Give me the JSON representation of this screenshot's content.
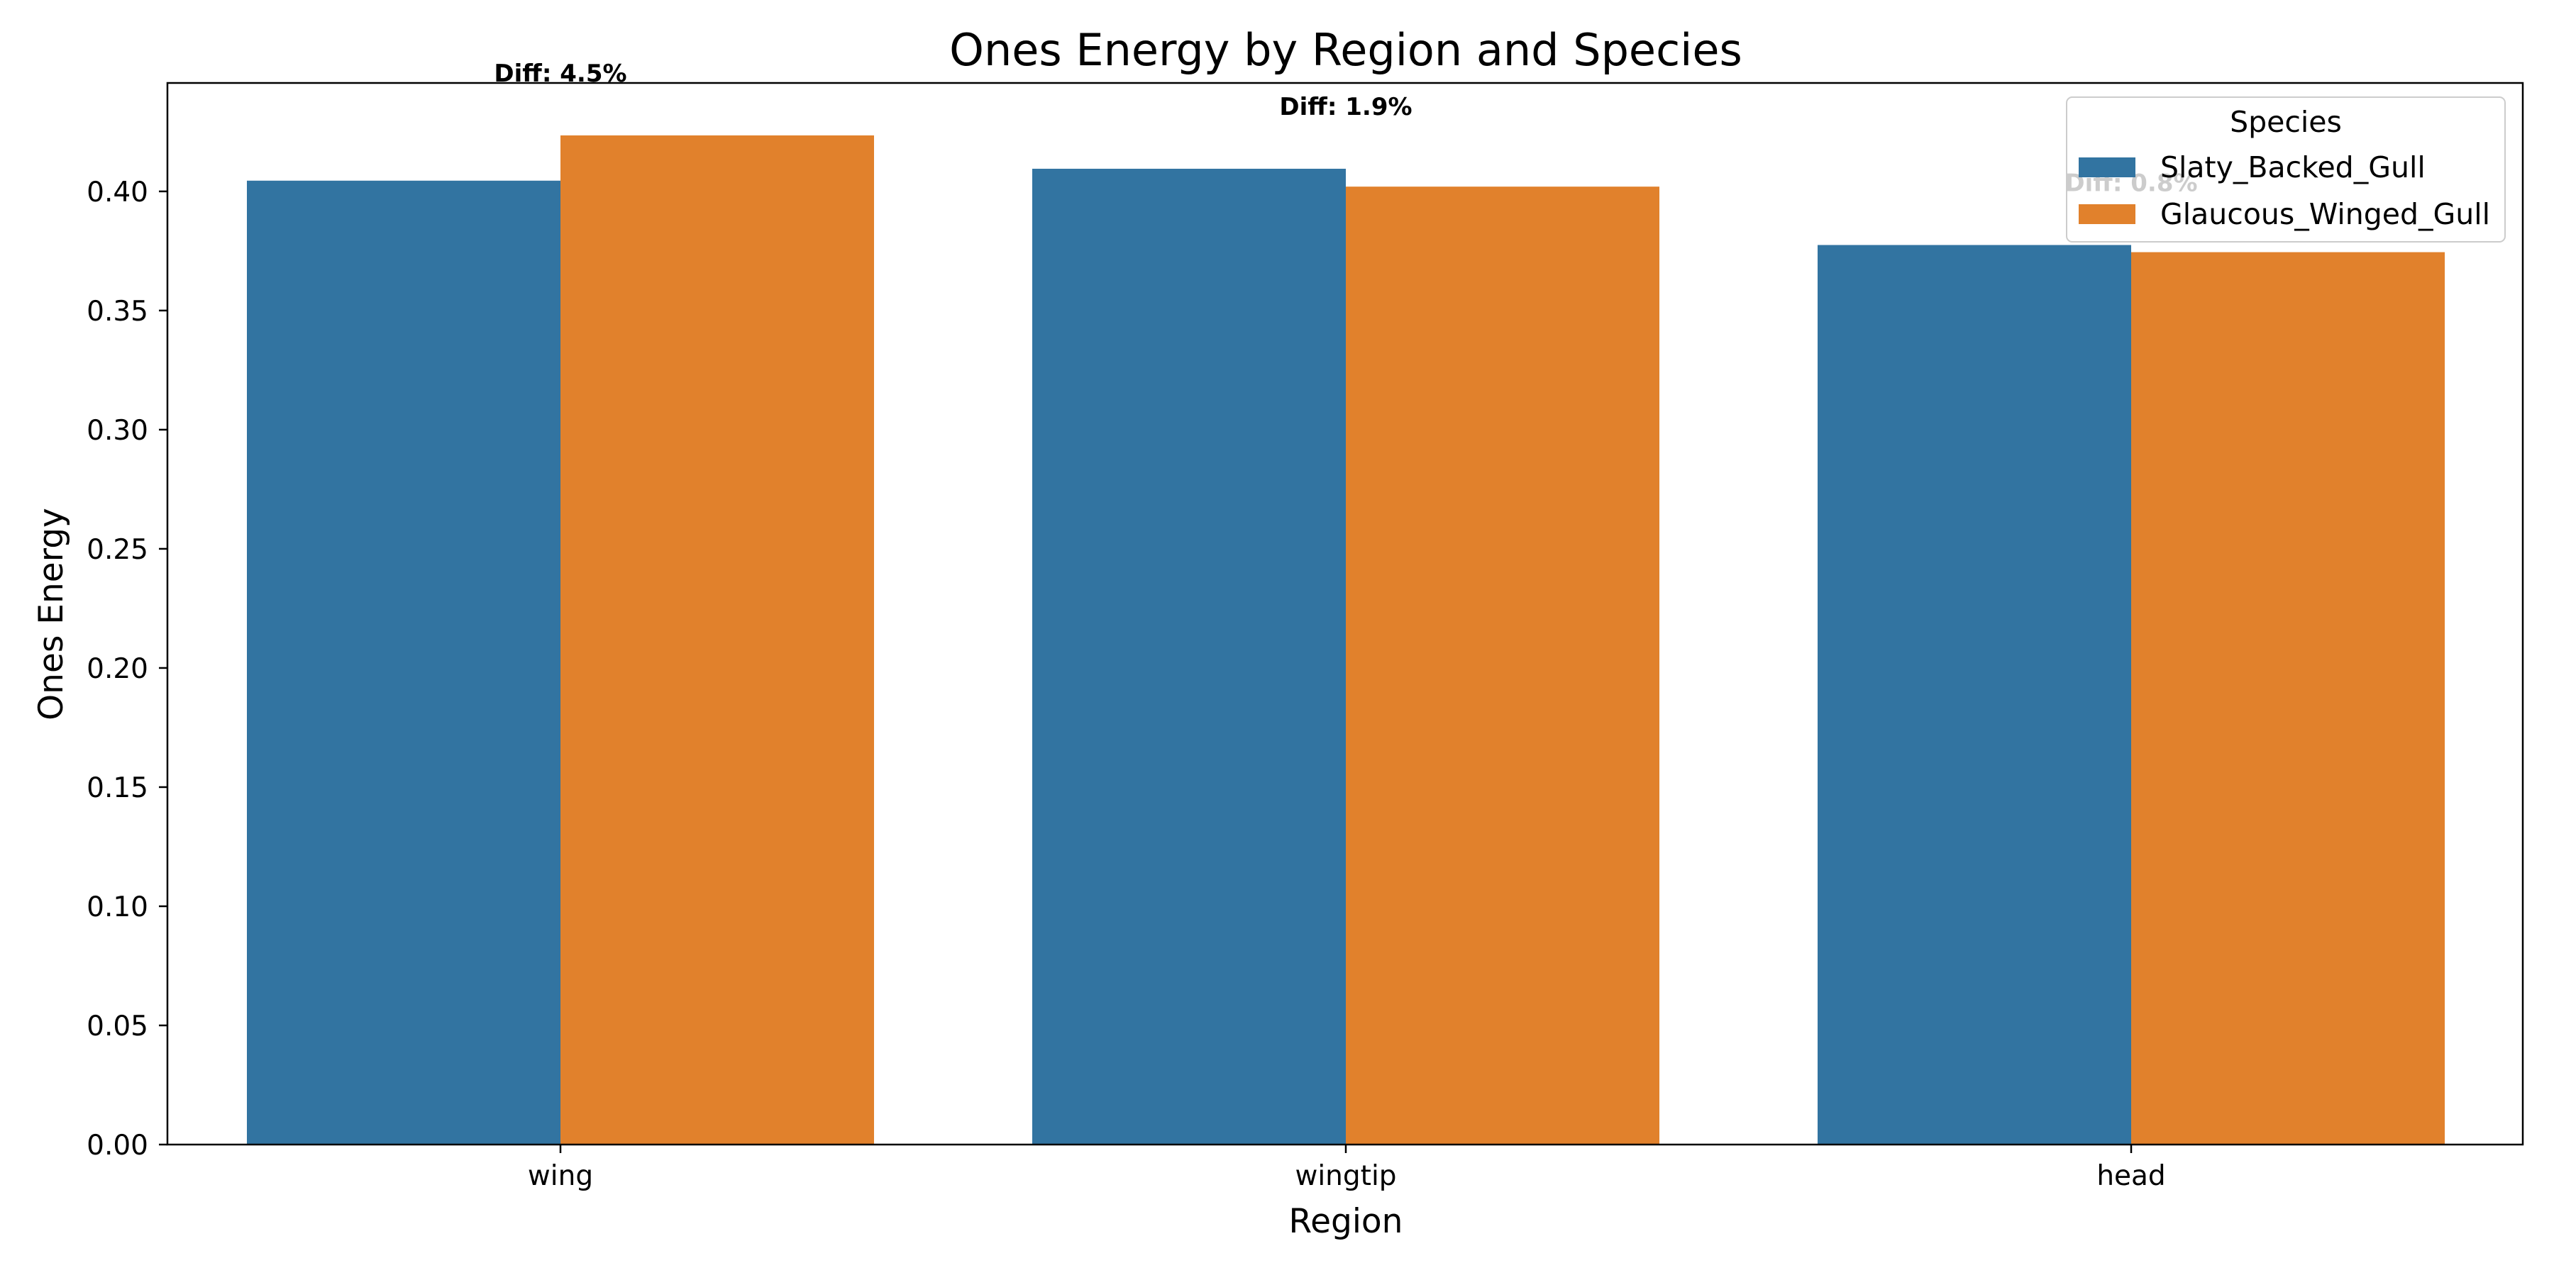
{
  "chart_data": {
    "type": "bar",
    "title": "Ones Energy by Region and Species",
    "xlabel": "Region",
    "ylabel": "Ones Energy",
    "categories": [
      "wing",
      "wingtip",
      "head"
    ],
    "series": [
      {
        "name": "Slaty_Backed_Gull",
        "values": [
          0.4045,
          0.4095,
          0.3775
        ],
        "color": "#3274a1"
      },
      {
        "name": "Glaucous_Winged_Gull",
        "values": [
          0.4235,
          0.402,
          0.3745
        ],
        "color": "#e1812c"
      }
    ],
    "annotations": [
      "Diff: 4.5%",
      "Diff: 1.9%",
      "Diff: 0.8%"
    ],
    "ylim": [
      0,
      0.4455
    ],
    "yticks": [
      "0.00",
      "0.05",
      "0.10",
      "0.15",
      "0.20",
      "0.25",
      "0.30",
      "0.35",
      "0.40"
    ],
    "legend": {
      "title": "Species",
      "position": "top-right"
    },
    "grid": false
  }
}
